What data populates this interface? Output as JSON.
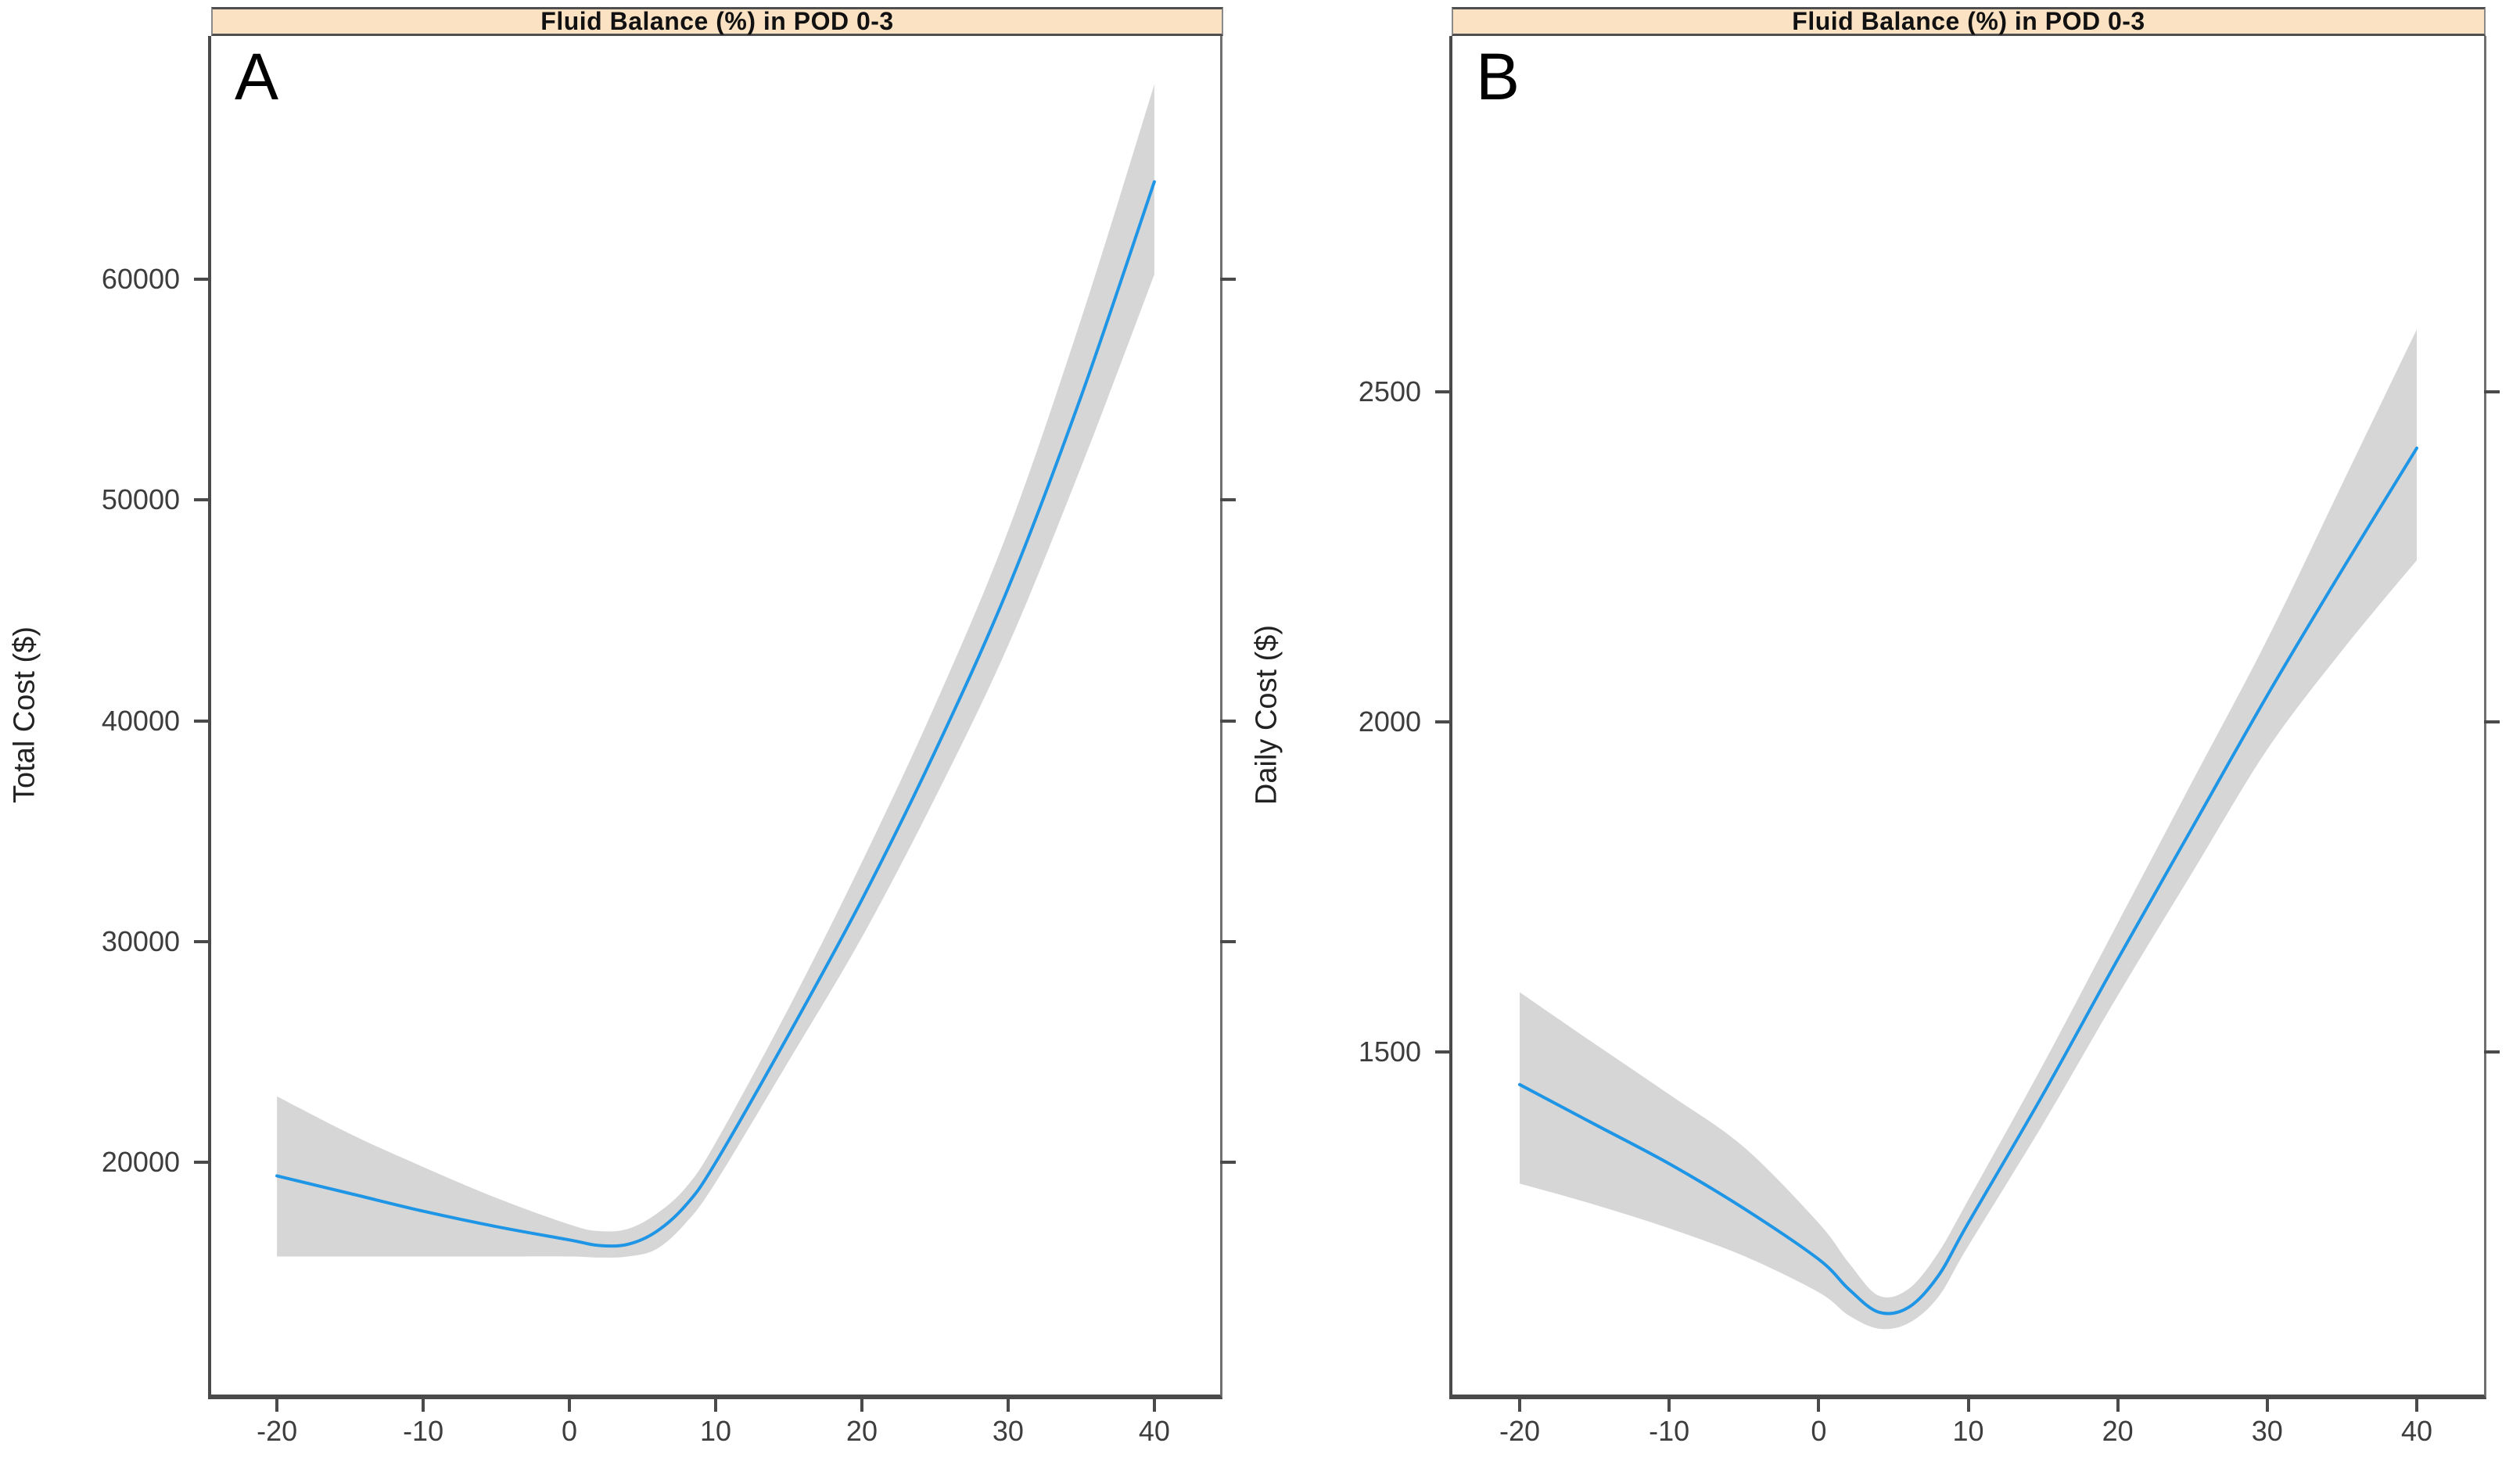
{
  "figure": {
    "panels": [
      {
        "letter": "A"
      },
      {
        "letter": "B"
      }
    ]
  },
  "colors": {
    "line": "#1f95e6",
    "ci_band": "#d6d6d6",
    "strip_bg": "#fae2c3",
    "axis": "#4a4a4a",
    "tick_text": "#3d3d3d"
  },
  "chart_data": [
    {
      "type": "line",
      "title": "Fluid Balance (%) in POD 0-3",
      "xlabel": "",
      "ylabel": "Total Cost ($)",
      "xlim": [
        -24.5,
        44.5
      ],
      "ylim": [
        9500,
        71000
      ],
      "x_ticks": [
        -20,
        -10,
        0,
        10,
        20,
        30,
        40
      ],
      "y_ticks": [
        20000,
        30000,
        40000,
        50000,
        60000
      ],
      "grid": false,
      "legend": "none",
      "series": [
        {
          "name": "mean",
          "x": [
            -20,
            -15,
            -10,
            -5,
            0,
            2,
            4,
            6,
            8,
            10,
            15,
            20,
            25,
            30,
            35,
            40
          ],
          "y": [
            19400,
            18600,
            17800,
            17100,
            16500,
            16250,
            16300,
            16900,
            18100,
            20000,
            25800,
            31900,
            38600,
            46000,
            54700,
            64400
          ]
        },
        {
          "name": "ci_upper",
          "x": [
            -20,
            -15,
            -10,
            -5,
            0,
            2,
            4,
            6,
            8,
            10,
            15,
            20,
            25,
            30,
            35,
            40
          ],
          "y": [
            23000,
            21300,
            19800,
            18400,
            17200,
            16900,
            17000,
            17700,
            18900,
            20900,
            27000,
            33600,
            40700,
            48600,
            58200,
            68800
          ]
        },
        {
          "name": "ci_lower",
          "x": [
            -20,
            -15,
            -10,
            -5,
            0,
            2,
            4,
            6,
            8,
            10,
            15,
            20,
            25,
            30,
            35,
            40
          ],
          "y": [
            15750,
            15750,
            15750,
            15750,
            15750,
            15700,
            15750,
            16100,
            17300,
            19100,
            24600,
            30200,
            36500,
            43400,
            51500,
            60200
          ]
        }
      ]
    },
    {
      "type": "line",
      "title": "Fluid Balance (%) in POD 0-3",
      "xlabel": "",
      "ylabel": "Daily Cost ($)",
      "xlim": [
        -24.5,
        44.5
      ],
      "ylim": [
        980,
        3040
      ],
      "x_ticks": [
        -20,
        -10,
        0,
        10,
        20,
        30,
        40
      ],
      "y_ticks": [
        1500,
        2000,
        2500
      ],
      "grid": false,
      "legend": "none",
      "series": [
        {
          "name": "mean",
          "x": [
            -20,
            -15,
            -10,
            -5,
            0,
            2,
            4,
            6,
            8,
            10,
            15,
            20,
            25,
            30,
            35,
            40
          ],
          "y": [
            1450,
            1390,
            1330,
            1262,
            1185,
            1140,
            1105,
            1112,
            1160,
            1240,
            1435,
            1640,
            1840,
            2040,
            2230,
            2415
          ]
        },
        {
          "name": "ci_upper",
          "x": [
            -20,
            -15,
            -10,
            -5,
            0,
            2,
            4,
            6,
            8,
            10,
            15,
            20,
            25,
            30,
            35,
            40
          ],
          "y": [
            1590,
            1512,
            1435,
            1355,
            1240,
            1180,
            1130,
            1140,
            1195,
            1275,
            1480,
            1695,
            1910,
            2125,
            2360,
            2595
          ]
        },
        {
          "name": "ci_lower",
          "x": [
            -20,
            -15,
            -10,
            -5,
            0,
            2,
            4,
            6,
            8,
            10,
            15,
            20,
            25,
            30,
            35,
            40
          ],
          "y": [
            1300,
            1268,
            1232,
            1190,
            1135,
            1100,
            1080,
            1088,
            1128,
            1205,
            1390,
            1585,
            1772,
            1958,
            2108,
            2245
          ]
        }
      ]
    }
  ]
}
